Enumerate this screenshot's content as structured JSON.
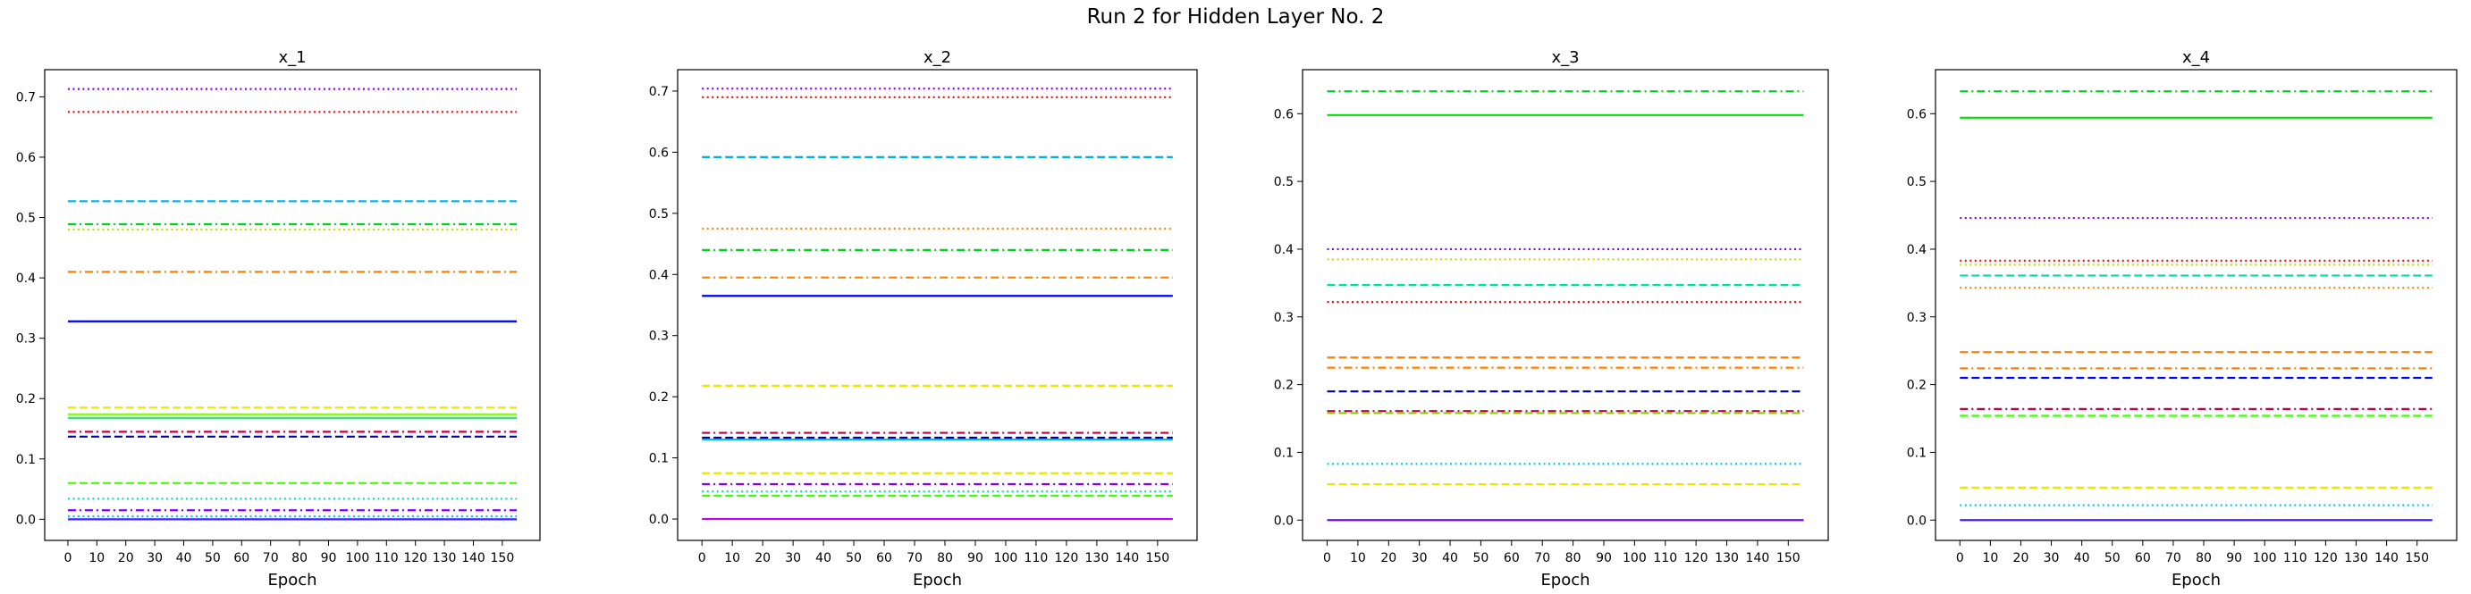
{
  "figure": {
    "title": "Run 2 for Hidden Layer No. 2"
  },
  "chart_data": [
    {
      "type": "line",
      "title": "x_1",
      "xlabel": "Epoch",
      "ylabel": "",
      "xlim": [
        -8,
        163
      ],
      "ylim": [
        -0.035,
        0.745
      ],
      "xticks": [
        0,
        10,
        20,
        30,
        40,
        50,
        60,
        70,
        80,
        90,
        100,
        110,
        120,
        130,
        140,
        150
      ],
      "yticks": [
        0.0,
        0.1,
        0.2,
        0.3,
        0.4,
        0.5,
        0.6,
        0.7
      ],
      "x_range": [
        0,
        155
      ],
      "grid": false,
      "series": [
        {
          "value": 0.713,
          "color": "#8000ff",
          "style": "dotted"
        },
        {
          "value": 0.675,
          "color": "#ff0000",
          "style": "dotted"
        },
        {
          "value": 0.527,
          "color": "#00b0f0",
          "style": "dashed"
        },
        {
          "value": 0.489,
          "color": "#00d020",
          "style": "dashdot"
        },
        {
          "value": 0.48,
          "color": "#c0e000",
          "style": "dotted"
        },
        {
          "value": 0.41,
          "color": "#ff8000",
          "style": "dashdot"
        },
        {
          "value": 0.328,
          "color": "#0000ff",
          "style": "solid"
        },
        {
          "value": 0.185,
          "color": "#e8e800",
          "style": "dashed"
        },
        {
          "value": 0.174,
          "color": "#80ff00",
          "style": "solid"
        },
        {
          "value": 0.168,
          "color": "#40e080",
          "style": "solid"
        },
        {
          "value": 0.145,
          "color": "#c00040",
          "style": "dashdot"
        },
        {
          "value": 0.137,
          "color": "#0000a0",
          "style": "dashed"
        },
        {
          "value": 0.06,
          "color": "#40ff00",
          "style": "dashed"
        },
        {
          "value": 0.034,
          "color": "#00e0c0",
          "style": "dotted"
        },
        {
          "value": 0.015,
          "color": "#8000ff",
          "style": "dashdot"
        },
        {
          "value": 0.005,
          "color": "#00c0ff",
          "style": "dotted"
        },
        {
          "value": 0.0,
          "color": "#4020ff",
          "style": "solid"
        }
      ]
    },
    {
      "type": "line",
      "title": "x_2",
      "xlabel": "Epoch",
      "ylabel": "",
      "xlim": [
        -8,
        163
      ],
      "ylim": [
        -0.035,
        0.735
      ],
      "xticks": [
        0,
        10,
        20,
        30,
        40,
        50,
        60,
        70,
        80,
        90,
        100,
        110,
        120,
        130,
        140,
        150
      ],
      "yticks": [
        0.0,
        0.1,
        0.2,
        0.3,
        0.4,
        0.5,
        0.6,
        0.7
      ],
      "x_range": [
        0,
        155
      ],
      "grid": false,
      "series": [
        {
          "value": 0.704,
          "color": "#8000ff",
          "style": "dotted"
        },
        {
          "value": 0.69,
          "color": "#ff0000",
          "style": "dotted"
        },
        {
          "value": 0.592,
          "color": "#00b0f0",
          "style": "dashed"
        },
        {
          "value": 0.475,
          "color": "#ff8000",
          "style": "dotted"
        },
        {
          "value": 0.44,
          "color": "#00d020",
          "style": "dashdot"
        },
        {
          "value": 0.395,
          "color": "#ff8000",
          "style": "dashdot"
        },
        {
          "value": 0.365,
          "color": "#0000ff",
          "style": "solid"
        },
        {
          "value": 0.218,
          "color": "#e8e800",
          "style": "dashed"
        },
        {
          "value": 0.141,
          "color": "#c00040",
          "style": "dashdot"
        },
        {
          "value": 0.133,
          "color": "#0000a0",
          "style": "dashed"
        },
        {
          "value": 0.13,
          "color": "#00c0e0",
          "style": "solid"
        },
        {
          "value": 0.075,
          "color": "#e8e800",
          "style": "dashed"
        },
        {
          "value": 0.057,
          "color": "#8000ff",
          "style": "dashdot"
        },
        {
          "value": 0.045,
          "color": "#00e0c0",
          "style": "dotted"
        },
        {
          "value": 0.038,
          "color": "#40ff00",
          "style": "dashed"
        },
        {
          "value": 0.0,
          "color": "#c000ff",
          "style": "solid"
        }
      ]
    },
    {
      "type": "line",
      "title": "x_3",
      "xlabel": "Epoch",
      "ylabel": "",
      "xlim": [
        -8,
        163
      ],
      "ylim": [
        -0.03,
        0.665
      ],
      "xticks": [
        0,
        10,
        20,
        30,
        40,
        50,
        60,
        70,
        80,
        90,
        100,
        110,
        120,
        130,
        140,
        150
      ],
      "yticks": [
        0.0,
        0.1,
        0.2,
        0.3,
        0.4,
        0.5,
        0.6
      ],
      "x_range": [
        0,
        155
      ],
      "grid": false,
      "series": [
        {
          "value": 0.633,
          "color": "#00d020",
          "style": "dashdot"
        },
        {
          "value": 0.598,
          "color": "#00e000",
          "style": "solid"
        },
        {
          "value": 0.4,
          "color": "#8000ff",
          "style": "dotted"
        },
        {
          "value": 0.385,
          "color": "#c0e000",
          "style": "dotted"
        },
        {
          "value": 0.347,
          "color": "#00e0a0",
          "style": "dashed"
        },
        {
          "value": 0.322,
          "color": "#ff0000",
          "style": "dotted"
        },
        {
          "value": 0.24,
          "color": "#ff8000",
          "style": "dashed"
        },
        {
          "value": 0.225,
          "color": "#ff8000",
          "style": "dashdot"
        },
        {
          "value": 0.19,
          "color": "#0000a0",
          "style": "dashed"
        },
        {
          "value": 0.161,
          "color": "#c00040",
          "style": "dashdot"
        },
        {
          "value": 0.158,
          "color": "#80d000",
          "style": "dashed"
        },
        {
          "value": 0.083,
          "color": "#00c0ff",
          "style": "dotted"
        },
        {
          "value": 0.053,
          "color": "#e8e800",
          "style": "dashed"
        },
        {
          "value": 0.0,
          "color": "#8000ff",
          "style": "solid"
        }
      ]
    },
    {
      "type": "line",
      "title": "x_4",
      "xlabel": "Epoch",
      "ylabel": "",
      "xlim": [
        -8,
        163
      ],
      "ylim": [
        -0.03,
        0.665
      ],
      "xticks": [
        0,
        10,
        20,
        30,
        40,
        50,
        60,
        70,
        80,
        90,
        100,
        110,
        120,
        130,
        140,
        150
      ],
      "yticks": [
        0.0,
        0.1,
        0.2,
        0.3,
        0.4,
        0.5,
        0.6
      ],
      "x_range": [
        0,
        155
      ],
      "grid": false,
      "series": [
        {
          "value": 0.633,
          "color": "#00d020",
          "style": "dashdot"
        },
        {
          "value": 0.594,
          "color": "#00e000",
          "style": "solid"
        },
        {
          "value": 0.446,
          "color": "#8000ff",
          "style": "dotted"
        },
        {
          "value": 0.383,
          "color": "#ff0000",
          "style": "dotted"
        },
        {
          "value": 0.377,
          "color": "#c0e000",
          "style": "dotted"
        },
        {
          "value": 0.361,
          "color": "#00e0a0",
          "style": "dashed"
        },
        {
          "value": 0.343,
          "color": "#ff8000",
          "style": "dotted"
        },
        {
          "value": 0.248,
          "color": "#ff8000",
          "style": "dashed"
        },
        {
          "value": 0.224,
          "color": "#ff8000",
          "style": "dashdot"
        },
        {
          "value": 0.21,
          "color": "#0000ff",
          "style": "dashed"
        },
        {
          "value": 0.164,
          "color": "#c00040",
          "style": "dashdot"
        },
        {
          "value": 0.154,
          "color": "#40ff00",
          "style": "dashed"
        },
        {
          "value": 0.048,
          "color": "#e8e800",
          "style": "dashed"
        },
        {
          "value": 0.022,
          "color": "#00c0ff",
          "style": "dotted"
        },
        {
          "value": 0.0,
          "color": "#4020ff",
          "style": "solid"
        }
      ]
    }
  ]
}
